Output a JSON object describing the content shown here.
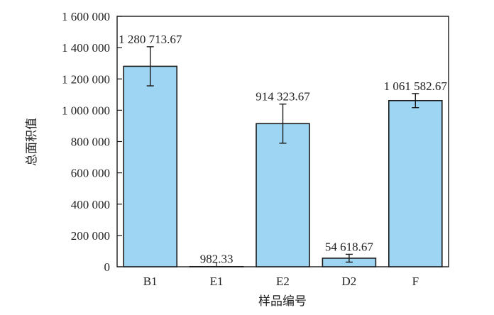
{
  "chart_data": {
    "type": "bar",
    "categories": [
      "B1",
      "E1",
      "E2",
      "D2",
      "F"
    ],
    "values": [
      1280713.67,
      982.33,
      914323.67,
      54618.67,
      1061582.67
    ],
    "error": [
      125000,
      300,
      125000,
      25000,
      45000
    ],
    "data_labels": [
      "1 280 713.67",
      "982.33",
      "914 323.67",
      "54 618.67",
      "1 061 582.67"
    ],
    "xlabel": "样品编号",
    "ylabel": "总面积值",
    "ylim": [
      0,
      1600000
    ],
    "yticks": [
      0,
      200000,
      400000,
      600000,
      800000,
      1000000,
      1200000,
      1400000,
      1600000
    ],
    "ytick_labels": [
      "0",
      "200 000",
      "400 000",
      "600 000",
      "800 000",
      "1 000 000",
      "1 200 000",
      "1 400 000",
      "1 600 000"
    ],
    "grid": false,
    "colors": {
      "bar_fill": "#9dd5f2",
      "bar_stroke": "#1a1a1a",
      "axis": "#1a1a1a"
    }
  }
}
